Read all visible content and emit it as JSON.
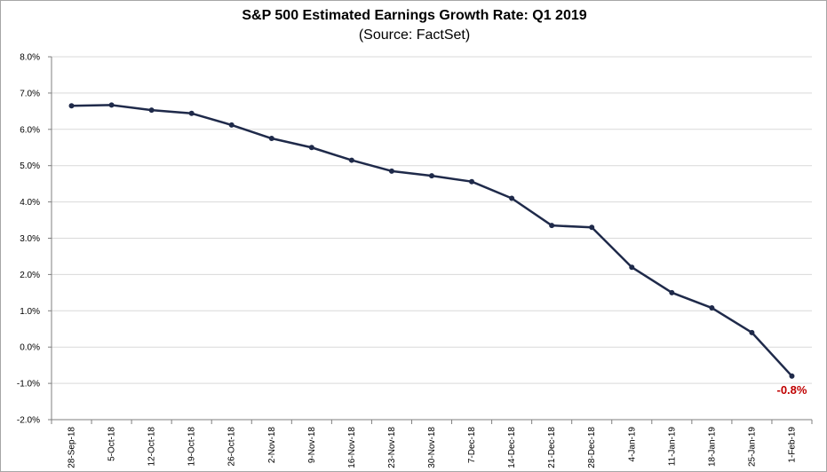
{
  "chart_data": {
    "type": "line",
    "title": "S&P 500 Estimated Earnings Growth Rate: Q1 2019",
    "subtitle": "(Source: FactSet)",
    "xlabel": "",
    "ylabel": "",
    "categories": [
      "28-Sep-18",
      "5-Oct-18",
      "12-Oct-18",
      "19-Oct-18",
      "26-Oct-18",
      "2-Nov-18",
      "9-Nov-18",
      "16-Nov-18",
      "23-Nov-18",
      "30-Nov-18",
      "7-Dec-18",
      "14-Dec-18",
      "21-Dec-18",
      "28-Dec-18",
      "4-Jan-19",
      "11-Jan-19",
      "18-Jan-19",
      "25-Jan-19",
      "1-Feb-19"
    ],
    "series": [
      {
        "values": [
          6.65,
          6.67,
          6.53,
          6.44,
          6.12,
          5.75,
          5.5,
          5.15,
          4.85,
          4.72,
          4.56,
          4.1,
          3.35,
          3.3,
          2.2,
          1.5,
          1.08,
          0.4,
          -0.8
        ]
      }
    ],
    "ylim": [
      -2.0,
      8.0
    ],
    "yticks": [
      "-2.0%",
      "-1.0%",
      "0.0%",
      "1.0%",
      "2.0%",
      "3.0%",
      "4.0%",
      "5.0%",
      "6.0%",
      "7.0%",
      "8.0%"
    ],
    "grid": true,
    "annotations": [
      {
        "text": "-0.8%",
        "point_index": 18,
        "color": "#c00000"
      }
    ],
    "colors": {
      "line": "#1f2a4a",
      "marker": "#1f2a4a",
      "grid": "#d9d9d9",
      "annotation": "#c00000"
    }
  }
}
